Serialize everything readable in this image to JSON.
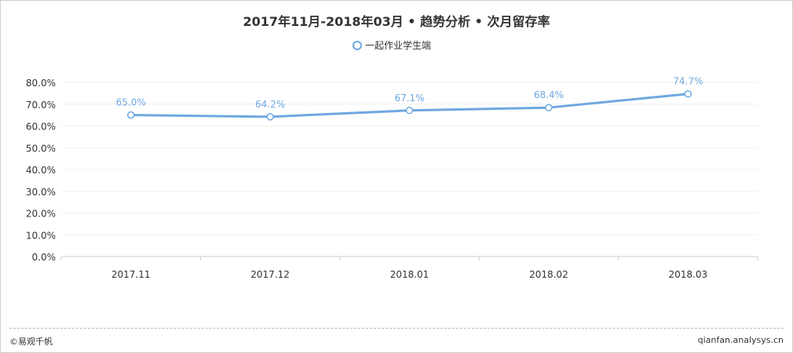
{
  "chart_data": {
    "type": "line",
    "title": "2017年11月-2018年03月 • 趋势分析 • 次月留存率",
    "categories": [
      "2017.11",
      "2017.12",
      "2018.01",
      "2018.02",
      "2018.03"
    ],
    "series": [
      {
        "name": "一起作业学生端",
        "values": [
          65.0,
          64.2,
          67.1,
          68.4,
          74.7
        ],
        "labels": [
          "65.0%",
          "64.2%",
          "67.1%",
          "68.4%",
          "74.7%"
        ],
        "color": "#6fa8e0"
      }
    ],
    "ylim": [
      0,
      80
    ],
    "y_ticks": [
      0,
      10,
      20,
      30,
      40,
      50,
      60,
      70,
      80
    ],
    "y_tick_labels": [
      "0.0%",
      "10.0%",
      "20.0%",
      "30.0%",
      "40.0%",
      "50.0%",
      "60.0%",
      "70.0%",
      "80.0%"
    ],
    "legend_position": "top-center",
    "grid": true
  },
  "footer": {
    "copyright": "©易观千帆",
    "site": "qianfan.analysys.cn"
  }
}
